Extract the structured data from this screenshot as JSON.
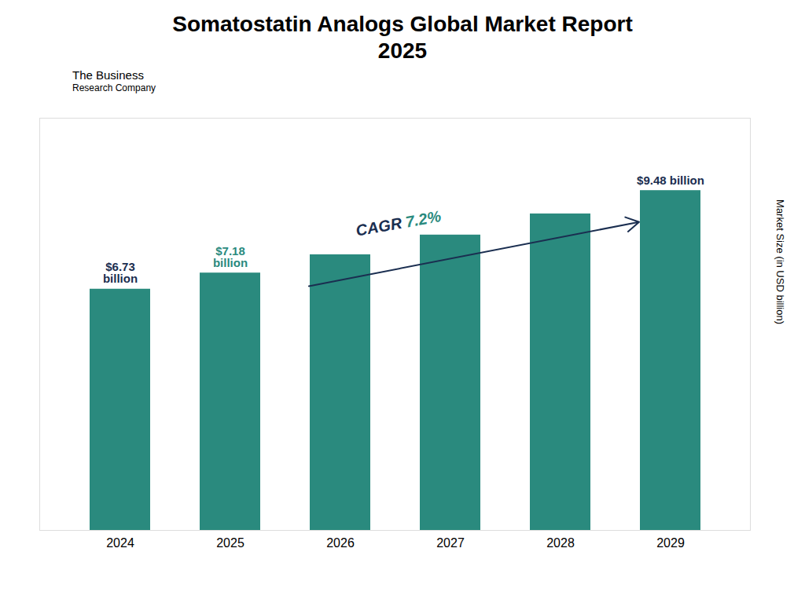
{
  "chart_data": {
    "type": "bar",
    "title": "Somatostatin Analogs Global Market Report\n2025",
    "categories": [
      "2024",
      "2025",
      "2026",
      "2027",
      "2028",
      "2029"
    ],
    "values": [
      6.73,
      7.18,
      7.69,
      8.24,
      8.83,
      9.48
    ],
    "color": "#2a8a7e",
    "ylabel": "Market Size (in USD billion)",
    "ylim": [
      0,
      11.5
    ],
    "tick_labels": "x",
    "annotations": [
      {
        "text": "$6.73\nbillion",
        "category": "2024",
        "color": "#1a2e50"
      },
      {
        "text": "$7.18\nbillion",
        "category": "2025",
        "color": "#2a8a7e"
      },
      {
        "text": "$9.48 billion",
        "category": "2029",
        "color": "#1a2e50"
      }
    ],
    "cagr": {
      "label": "CAGR ",
      "value": "7.2%",
      "label_color": "#1a2e50",
      "value_color": "#2a8a7e",
      "from": "2026",
      "to": "2029",
      "arrow_color": "#1a2e50"
    },
    "logo": [
      "The Business",
      "Research Company"
    ]
  }
}
